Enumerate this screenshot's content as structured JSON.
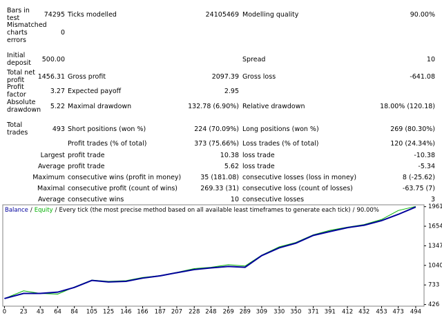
{
  "report": {
    "summary": [
      {
        "c1": {
          "label": "Bars in test",
          "value": "74295"
        },
        "c2": {
          "label": "Ticks modelled",
          "value": "24105469"
        },
        "c3": {
          "label": "Modelling quality",
          "value": "90.00%"
        }
      },
      {
        "c1": {
          "label": "Mismatched charts errors",
          "value": "0"
        }
      },
      {
        "c1": {
          "label": "Initial deposit",
          "value": "500.00"
        },
        "c3": {
          "label": "Spread",
          "value": "10"
        }
      },
      {
        "c1": {
          "label": "Total net profit",
          "value": "1456.31"
        },
        "c2": {
          "label": "Gross profit",
          "value": "2097.39"
        },
        "c3": {
          "label": "Gross loss",
          "value": "-641.08"
        }
      },
      {
        "c1": {
          "label": "Profit factor",
          "value": "3.27"
        },
        "c2": {
          "label": "Expected payoff",
          "value": "2.95"
        }
      },
      {
        "c1": {
          "label": "Absolute drawdown",
          "value": "5.22"
        },
        "c2": {
          "label": "Maximal drawdown",
          "value": "132.78 (6.90%)"
        },
        "c3": {
          "label": "Relative drawdown",
          "value": "18.00% (120.18)"
        }
      },
      {
        "c1": {
          "label": "Total trades",
          "value": "493"
        },
        "c2": {
          "label": "Short positions (won %)",
          "value": "224 (70.09%)"
        },
        "c3": {
          "label": "Long positions (won %)",
          "value": "269 (80.30%)"
        }
      },
      {
        "c2": {
          "label": "Profit trades (% of total)",
          "value": "373 (75.66%)"
        },
        "c3": {
          "label": "Loss trades (% of total)",
          "value": "120 (24.34%)"
        }
      }
    ],
    "trades": [
      {
        "prefix": "Largest",
        "c2": {
          "label": "profit trade",
          "value": "10.38"
        },
        "c3": {
          "label": "loss trade",
          "value": "-10.38"
        }
      },
      {
        "prefix": "Average",
        "c2": {
          "label": "profit trade",
          "value": "5.62"
        },
        "c3": {
          "label": "loss trade",
          "value": "-5.34"
        }
      },
      {
        "prefix": "Maximum",
        "c2": {
          "label": "consecutive wins (profit in money)",
          "value": "35 (181.08)"
        },
        "c3": {
          "label": "consecutive losses (loss in money)",
          "value": "8 (-25.62)"
        }
      },
      {
        "prefix": "Maximal",
        "c2": {
          "label": "consecutive profit (count of wins)",
          "value": "269.33 (31)"
        },
        "c3": {
          "label": "consecutive loss (count of losses)",
          "value": "-63.75 (7)"
        }
      },
      {
        "prefix": "Average",
        "c2": {
          "label": "consecutive wins",
          "value": "10"
        },
        "c3": {
          "label": "consecutive losses",
          "value": "3"
        }
      }
    ]
  },
  "chart_data": {
    "type": "line",
    "separator": "/",
    "subtitle": "Every tick (the most precise method based on all available least timeframes to generate each tick)",
    "quality": "90.00%",
    "x": [
      0,
      23,
      43,
      64,
      84,
      105,
      125,
      146,
      166,
      187,
      207,
      228,
      248,
      269,
      289,
      309,
      330,
      350,
      371,
      391,
      412,
      432,
      453,
      473,
      494
    ],
    "series": [
      {
        "name": "Balance",
        "color": "#00009c",
        "values": [
          520,
          600,
          600,
          620,
          694,
          804,
          780,
          790,
          840,
          876,
          925,
          974,
          1000,
          1023,
          1010,
          1193,
          1315,
          1388,
          1510,
          1571,
          1632,
          1670,
          1742,
          1840,
          1956
        ]
      },
      {
        "name": "Equity",
        "color": "#00b000",
        "values": [
          520,
          640,
          600,
          590,
          700,
          810,
          790,
          800,
          850,
          880,
          930,
          990,
          1010,
          1050,
          1030,
          1200,
          1330,
          1400,
          1520,
          1590,
          1640,
          1680,
          1760,
          1900,
          1965
        ]
      }
    ],
    "xlim": [
      -2,
      504
    ],
    "ylim": [
      400,
      1990
    ],
    "xticks": [
      0,
      23,
      43,
      64,
      84,
      105,
      125,
      146,
      166,
      187,
      207,
      228,
      248,
      269,
      289,
      309,
      330,
      350,
      371,
      391,
      412,
      432,
      453,
      473,
      494
    ],
    "yticks": [
      426,
      733,
      1040,
      1347,
      1654,
      1961
    ],
    "grid": false
  }
}
